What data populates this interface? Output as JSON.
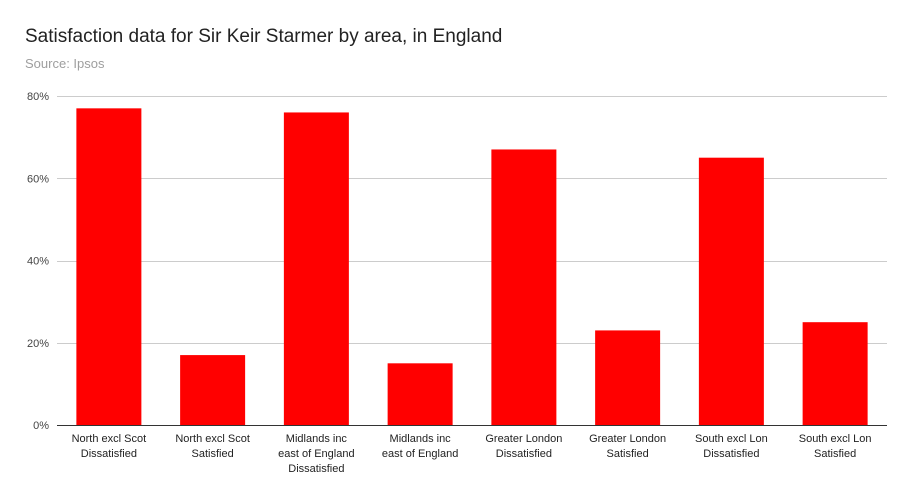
{
  "title": "Satisfaction data for Sir Keir Starmer by area, in England",
  "subtitle": "Source: Ipsos",
  "bar_color": "#ff0000",
  "grid_color": "#cccccc",
  "chart_data": {
    "type": "bar",
    "title": "Satisfaction data for Sir Keir Starmer by area, in England",
    "subtitle": "Source: Ipsos",
    "xlabel": "",
    "ylabel": "",
    "categories": [
      [
        "North excl Scot",
        "Dissatisfied"
      ],
      [
        "North excl Scot",
        "Satisfied"
      ],
      [
        "Midlands inc",
        "east of England",
        "Dissatisfied"
      ],
      [
        "Midlands inc",
        "east of England"
      ],
      [
        "Greater London",
        "Dissatisfied"
      ],
      [
        "Greater London",
        "Satisfied"
      ],
      [
        "South excl Lon",
        "Dissatisfied"
      ],
      [
        "South excl Lon",
        "Satisfied"
      ]
    ],
    "values": [
      77,
      17,
      76,
      15,
      67,
      23,
      65,
      25
    ],
    "ylim": [
      0,
      80
    ],
    "yticks": [
      0,
      20,
      40,
      60,
      80
    ],
    "ytick_labels": [
      "0%",
      "20%",
      "40%",
      "60%",
      "80%"
    ],
    "grid": true,
    "legend": "none"
  }
}
